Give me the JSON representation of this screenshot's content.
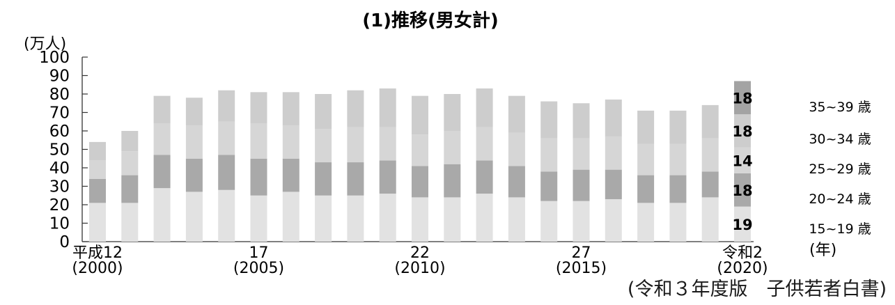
{
  "chart_data": {
    "type": "bar",
    "stacked": true,
    "title": "(1)推移(男女計)",
    "yunit": "(万人)",
    "ylim": [
      0,
      100
    ],
    "yticks": [
      0,
      10,
      20,
      30,
      40,
      50,
      60,
      70,
      80,
      90,
      100
    ],
    "xunit": "(年)",
    "x_tick_labels": [
      {
        "index": 0,
        "line1": "平成12",
        "line2": "(2000)"
      },
      {
        "index": 5,
        "line1": "17",
        "line2": "(2005)"
      },
      {
        "index": 10,
        "line1": "22",
        "line2": "(2010)"
      },
      {
        "index": 15,
        "line1": "27",
        "line2": "(2015)"
      },
      {
        "index": 20,
        "line1": "令和2",
        "line2": "(2020)"
      }
    ],
    "totals": [
      54,
      60,
      79,
      78,
      82,
      81,
      81,
      80,
      82,
      83,
      79,
      80,
      83,
      79,
      76,
      75,
      77,
      71,
      71,
      74,
      87
    ],
    "boundaries": [
      [
        21,
        34,
        44
      ],
      [
        21,
        36,
        49
      ],
      [
        29,
        47,
        64
      ],
      [
        27,
        45,
        63
      ],
      [
        28,
        47,
        65
      ],
      [
        25,
        45,
        64
      ],
      [
        27,
        45,
        63
      ],
      [
        25,
        43,
        61
      ],
      [
        25,
        43,
        62
      ],
      [
        26,
        44,
        62
      ],
      [
        24,
        41,
        58
      ],
      [
        24,
        42,
        60
      ],
      [
        26,
        44,
        62
      ],
      [
        24,
        41,
        59
      ],
      [
        22,
        38,
        56
      ],
      [
        22,
        39,
        56
      ],
      [
        23,
        39,
        57
      ],
      [
        21,
        36,
        53
      ],
      [
        21,
        36,
        53
      ],
      [
        24,
        38,
        56
      ],
      [
        19,
        37,
        51,
        69
      ]
    ],
    "series": [
      {
        "name": "15~19 歳",
        "color": "#e2e2e2"
      },
      {
        "name": "20~24 歳",
        "color": "#a9a9a9"
      },
      {
        "name": "25~29 歳",
        "color": "#d6d6d6"
      },
      {
        "name": "30~34 歳",
        "color": "#cdcdcd"
      },
      {
        "name": "35~39 歳",
        "color": "#a3a3a3"
      }
    ],
    "last_bar_segment_labels": [
      "19",
      "18",
      "14",
      "18",
      "18"
    ]
  },
  "source": "(令和３年度版　子供若者白書)"
}
